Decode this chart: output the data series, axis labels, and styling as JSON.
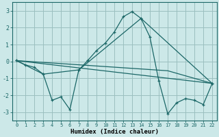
{
  "title": "",
  "xlabel": "Humidex (Indice chaleur)",
  "bg_color": "#cce8e8",
  "grid_color": "#9bbfbf",
  "line_color": "#1a6666",
  "xlim": [
    -0.5,
    22.5
  ],
  "ylim": [
    -3.5,
    3.5
  ],
  "xticks": [
    0,
    1,
    2,
    3,
    4,
    5,
    6,
    7,
    8,
    9,
    10,
    11,
    12,
    13,
    14,
    15,
    16,
    17,
    18,
    19,
    20,
    21,
    22
  ],
  "yticks": [
    -3,
    -2,
    -1,
    0,
    1,
    2,
    3
  ],
  "lines": [
    {
      "x": [
        0,
        1,
        2,
        3,
        4,
        5,
        6,
        7,
        8,
        9,
        10,
        11,
        12,
        13,
        14,
        15,
        16,
        17,
        18,
        19,
        20,
        21,
        22
      ],
      "y": [
        0.05,
        -0.2,
        -0.35,
        -0.75,
        -2.3,
        -2.1,
        -2.85,
        -0.5,
        0.05,
        0.65,
        1.1,
        1.75,
        2.65,
        2.95,
        2.55,
        1.45,
        -1.15,
        -3.1,
        -2.45,
        -2.2,
        -2.3,
        -2.55,
        -1.3
      ],
      "marker": true
    },
    {
      "x": [
        0,
        3,
        7,
        14,
        22
      ],
      "y": [
        0.05,
        -0.75,
        -0.5,
        2.55,
        -1.3
      ],
      "marker": true
    },
    {
      "x": [
        0,
        22
      ],
      "y": [
        0.05,
        -1.3
      ],
      "marker": false
    },
    {
      "x": [
        0,
        17,
        22
      ],
      "y": [
        0.05,
        -0.55,
        -1.3
      ],
      "marker": false
    }
  ]
}
